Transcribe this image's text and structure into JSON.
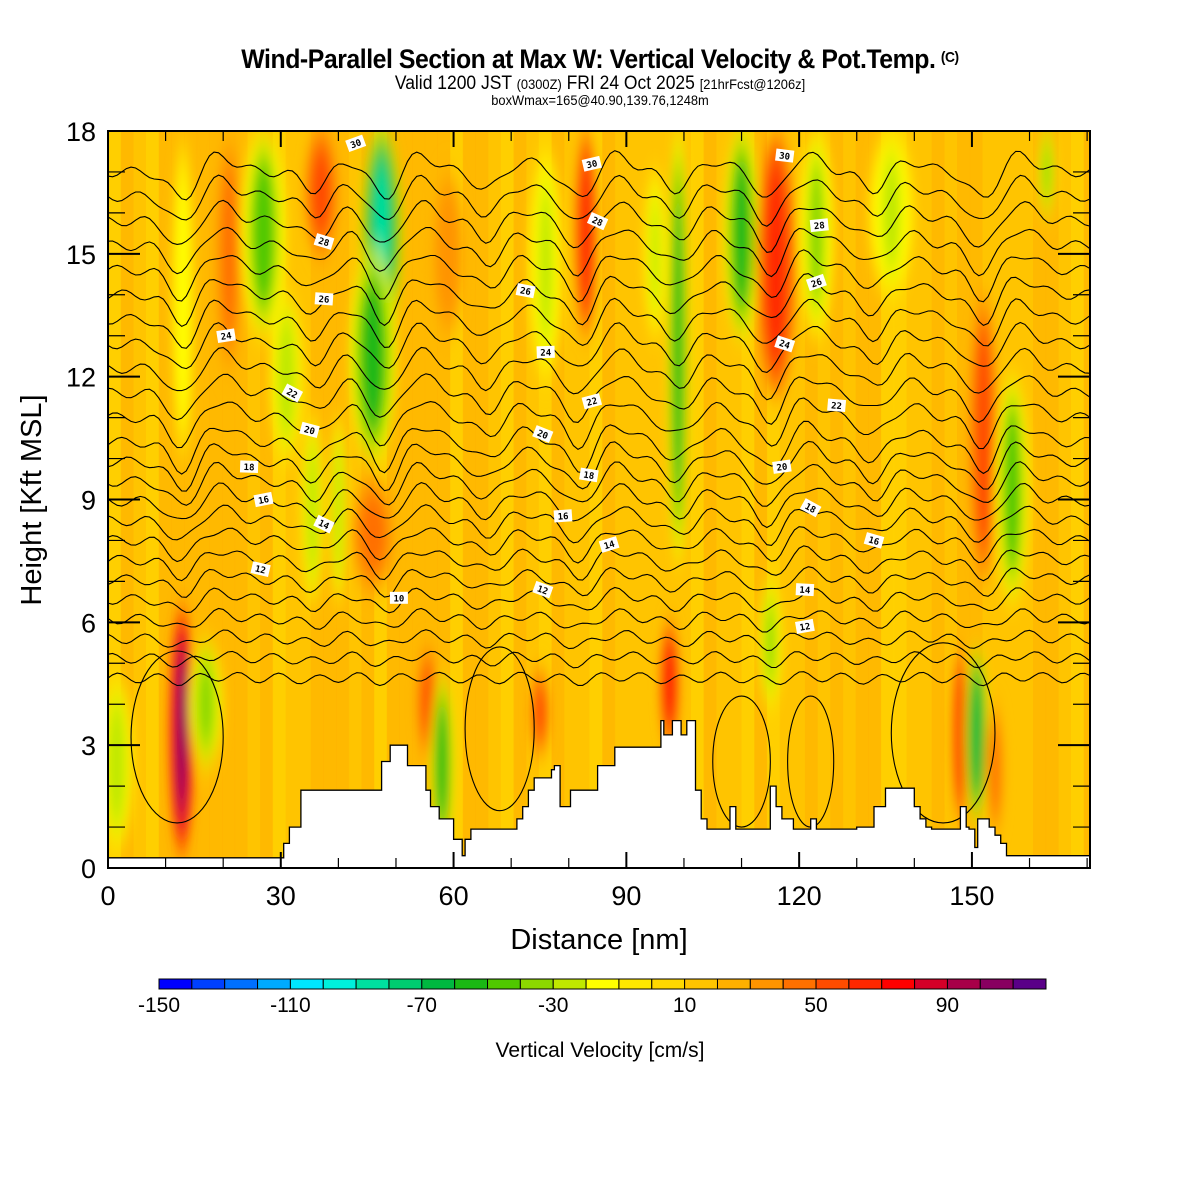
{
  "header": {
    "title": "Wind-Parallel Section at Max W: Vertical Velocity & Pot.Temp.",
    "title_suffix": "(C)",
    "subtitle_main": "Valid 1200 JST",
    "subtitle_utc": "(0300Z)",
    "subtitle_date": "FRI 24 Oct 2025",
    "subtitle_fcst": "[21hrFcst@1206z]",
    "info_line": "boxWmax=165@40.90,139.76,1248m"
  },
  "chart_data": {
    "type": "heatmap",
    "title": "Wind-Parallel Section at Max W: Vertical Velocity & Pot.Temp. (C)",
    "xlabel": "Distance [nm]",
    "ylabel": "Height [Kft MSL]",
    "xlim": [
      0,
      170.5
    ],
    "ylim": [
      0,
      18
    ],
    "xticks": [
      0,
      30,
      60,
      90,
      120,
      150
    ],
    "xtick_labels": [
      "0",
      "30",
      "60",
      "90",
      "120",
      "150"
    ],
    "x_minor_step": 10,
    "yticks": [
      0,
      3,
      6,
      9,
      12,
      15,
      18
    ],
    "ytick_labels": [
      "0",
      "3",
      "6",
      "9",
      "12",
      "15",
      "18"
    ],
    "y_minor_step": 1,
    "colorbar": {
      "title": "Vertical Velocity [cm/s]",
      "min": -150,
      "step": 10,
      "colors": [
        "#0000ff",
        "#0040ff",
        "#0070ff",
        "#00aaff",
        "#00e6ff",
        "#00f0dc",
        "#00e0a0",
        "#00cc70",
        "#00b840",
        "#1ab814",
        "#50c800",
        "#8cd800",
        "#c0e800",
        "#ffff00",
        "#ffe800",
        "#ffd800",
        "#ffc400",
        "#ffb000",
        "#ff9400",
        "#ff7000",
        "#ff4c00",
        "#ff2800",
        "#ff0000",
        "#d40028",
        "#a80048",
        "#880060",
        "#5a0088"
      ],
      "tick_values": [
        -150,
        -110,
        -70,
        -30,
        10,
        50,
        90
      ],
      "tick_labels": [
        "-150",
        "-110",
        "-70",
        "-30",
        "10",
        "50",
        "90"
      ]
    },
    "background_w": 15,
    "w_features": [
      {
        "x": 1.5,
        "y0": 0.5,
        "y1": 4.6,
        "w": -35,
        "width": 3
      },
      {
        "x": 12.8,
        "y0": 0.4,
        "y1": 6.3,
        "w": 115,
        "width": 2.2
      },
      {
        "x": 17,
        "y0": 2.5,
        "y1": 5.5,
        "w": -45,
        "width": 3
      },
      {
        "x": 13,
        "y0": 10,
        "y1": 17.8,
        "w": -25,
        "width": 2
      },
      {
        "x": 21,
        "y0": 12,
        "y1": 18,
        "w": 45,
        "width": 3
      },
      {
        "x": 27,
        "y0": 13,
        "y1": 18,
        "w": -55,
        "width": 4
      },
      {
        "x": 31,
        "y0": 10,
        "y1": 14,
        "w": -35,
        "width": 3
      },
      {
        "x": 37,
        "y0": 15,
        "y1": 18,
        "w": 65,
        "width": 3
      },
      {
        "x": 35.5,
        "y0": 6.5,
        "y1": 11,
        "w": -35,
        "width": 2
      },
      {
        "x": 40,
        "y0": 6.5,
        "y1": 11,
        "w": -35,
        "width": 1.5
      },
      {
        "x": 46,
        "y0": 6.8,
        "y1": 9.5,
        "w": 55,
        "width": 4
      },
      {
        "x": 47.5,
        "y0": 13,
        "y1": 18,
        "w": -95,
        "width": 3.5
      },
      {
        "x": 46,
        "y0": 10,
        "y1": 15,
        "w": -60,
        "width": 4
      },
      {
        "x": 55.5,
        "y0": 2.8,
        "y1": 5.3,
        "w": 60,
        "width": 2
      },
      {
        "x": 58,
        "y0": 0.5,
        "y1": 4.6,
        "w": -60,
        "width": 2
      },
      {
        "x": 59,
        "y0": 13,
        "y1": 17,
        "w": 40,
        "width": 3
      },
      {
        "x": 75,
        "y0": 2.8,
        "y1": 4.8,
        "w": 65,
        "width": 1.8
      },
      {
        "x": 76,
        "y0": 12,
        "y1": 17.5,
        "w": -30,
        "width": 3
      },
      {
        "x": 83,
        "y0": 13,
        "y1": 18,
        "w": 75,
        "width": 2
      },
      {
        "x": 97.5,
        "y0": 3,
        "y1": 6,
        "w": 85,
        "width": 1.8
      },
      {
        "x": 99,
        "y0": 7.5,
        "y1": 18,
        "w": -65,
        "width": 1.8
      },
      {
        "x": 95,
        "y0": 13,
        "y1": 17,
        "w": -30,
        "width": 2
      },
      {
        "x": 110,
        "y0": 13,
        "y1": 18,
        "w": -70,
        "width": 3
      },
      {
        "x": 116,
        "y0": 11.5,
        "y1": 18,
        "w": 75,
        "width": 3.5
      },
      {
        "x": 115,
        "y0": 4,
        "y1": 7,
        "w": -40,
        "width": 2
      },
      {
        "x": 123,
        "y0": 13,
        "y1": 18,
        "w": -40,
        "width": 3
      },
      {
        "x": 136,
        "y0": 14,
        "y1": 18,
        "w": -30,
        "width": 4
      },
      {
        "x": 148,
        "y0": 1.2,
        "y1": 5.3,
        "w": 75,
        "width": 1.4
      },
      {
        "x": 150.8,
        "y0": 1.2,
        "y1": 5.3,
        "w": -80,
        "width": 2
      },
      {
        "x": 154,
        "y0": 0.8,
        "y1": 4,
        "w": 45,
        "width": 1.8
      },
      {
        "x": 152,
        "y0": 7,
        "y1": 14,
        "w": 65,
        "width": 2.5
      },
      {
        "x": 157,
        "y0": 6.5,
        "y1": 12,
        "w": -55,
        "width": 3
      },
      {
        "x": 163,
        "y0": 16,
        "y1": 18,
        "w": -45,
        "width": 1.5
      }
    ],
    "terrain": {
      "x": [
        0,
        30,
        30.5,
        31.5,
        33.5,
        47,
        47.5,
        49,
        52,
        55.2,
        56,
        57.5,
        60,
        61.5,
        62,
        63,
        70,
        71,
        72,
        73,
        74,
        77,
        77.5,
        78.5,
        80.3,
        85,
        88,
        96,
        96.5,
        98,
        99.5,
        100.5,
        102,
        103,
        104,
        106,
        108,
        109,
        111,
        115,
        116,
        117,
        119,
        121,
        122,
        123,
        124,
        130,
        133,
        135,
        138.5,
        140,
        141,
        142,
        143,
        147,
        148,
        149,
        149.5,
        150,
        150.5,
        151,
        152,
        153,
        154,
        155,
        156,
        157,
        158,
        170.5
      ],
      "y": [
        0.25,
        0.25,
        0.6,
        1.0,
        1.9,
        1.9,
        2.6,
        3.0,
        2.5,
        1.9,
        1.5,
        1.2,
        0.7,
        0.3,
        0.7,
        0.95,
        0.95,
        1.2,
        1.5,
        1.9,
        2.2,
        2.4,
        2.5,
        1.5,
        1.9,
        2.5,
        2.95,
        3.6,
        3.25,
        3.6,
        3.25,
        3.6,
        1.9,
        1.2,
        0.95,
        0.95,
        1.5,
        0.95,
        0.95,
        2.0,
        1.5,
        1.2,
        0.95,
        0.95,
        1.2,
        0.95,
        0.95,
        1.0,
        1.5,
        1.95,
        1.95,
        1.5,
        1.2,
        1.0,
        0.95,
        0.95,
        1.5,
        1.0,
        0.95,
        0.95,
        0.5,
        1.2,
        1.2,
        1.0,
        0.8,
        0.6,
        0.3,
        0.3,
        0.3,
        0.3
      ]
    },
    "theta_contours": {
      "interval_c": 1,
      "label_interval_c": 2,
      "levels_c": [
        8,
        9,
        10,
        11,
        12,
        13,
        14,
        15,
        16,
        17,
        18,
        19,
        20,
        21,
        22,
        23,
        24,
        25,
        26,
        27,
        28,
        29,
        30,
        31
      ]
    },
    "contour_labels": [
      {
        "text": "30",
        "x": 43,
        "y": 17.7
      },
      {
        "text": "28",
        "x": 37.5,
        "y": 15.3
      },
      {
        "text": "26",
        "x": 37.5,
        "y": 13.9
      },
      {
        "text": "24",
        "x": 20.5,
        "y": 13.0
      },
      {
        "text": "22",
        "x": 32,
        "y": 11.6
      },
      {
        "text": "20",
        "x": 35,
        "y": 10.7
      },
      {
        "text": "18",
        "x": 24.5,
        "y": 9.8
      },
      {
        "text": "16",
        "x": 27,
        "y": 9.0
      },
      {
        "text": "14",
        "x": 37.5,
        "y": 8.4
      },
      {
        "text": "12",
        "x": 26.5,
        "y": 7.3
      },
      {
        "text": "10",
        "x": 50.5,
        "y": 6.6
      },
      {
        "text": "30",
        "x": 84,
        "y": 17.2
      },
      {
        "text": "28",
        "x": 85,
        "y": 15.8
      },
      {
        "text": "26",
        "x": 72.5,
        "y": 14.1
      },
      {
        "text": "24",
        "x": 76,
        "y": 12.6
      },
      {
        "text": "22",
        "x": 84,
        "y": 11.4
      },
      {
        "text": "20",
        "x": 75.5,
        "y": 10.6
      },
      {
        "text": "18",
        "x": 83.5,
        "y": 9.6
      },
      {
        "text": "16",
        "x": 79,
        "y": 8.6
      },
      {
        "text": "14",
        "x": 87,
        "y": 7.9
      },
      {
        "text": "12",
        "x": 75.5,
        "y": 6.8
      },
      {
        "text": "30",
        "x": 117.5,
        "y": 17.4
      },
      {
        "text": "28",
        "x": 123.5,
        "y": 15.7
      },
      {
        "text": "26",
        "x": 123,
        "y": 14.3
      },
      {
        "text": "24",
        "x": 117.5,
        "y": 12.8
      },
      {
        "text": "22",
        "x": 126.5,
        "y": 11.3
      },
      {
        "text": "20",
        "x": 117,
        "y": 9.8
      },
      {
        "text": "18",
        "x": 122,
        "y": 8.8
      },
      {
        "text": "16",
        "x": 133,
        "y": 8.0
      },
      {
        "text": "14",
        "x": 121,
        "y": 6.8
      },
      {
        "text": "12",
        "x": 121,
        "y": 5.9
      }
    ]
  }
}
